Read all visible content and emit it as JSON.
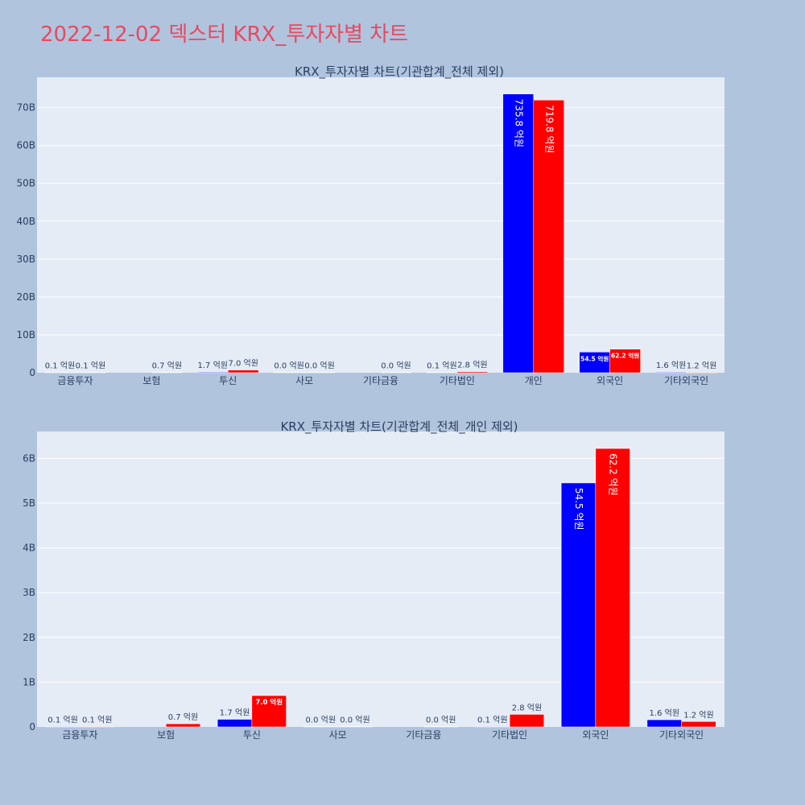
{
  "page": {
    "title": "2022-12-02 덱스터 KRX_투자자별 차트"
  },
  "colors": {
    "background": "#b0c4de",
    "plot_background": "#e5ecf6",
    "title": "#e8495f",
    "text": "#2a3f5f",
    "series_a": "#0000ff",
    "series_b": "#ff0000"
  },
  "chart_data": [
    {
      "type": "bar",
      "title": "KRX_투자자별 차트(기관합계_전체 제외)",
      "categories": [
        "금융투자",
        "보험",
        "투신",
        "사모",
        "기타금융",
        "기타법인",
        "개인",
        "외국인",
        "기타외국인"
      ],
      "series": [
        {
          "color": "#0000ff",
          "values": [
            0.01,
            null,
            0.17,
            0.0,
            null,
            0.01,
            73.58,
            5.45,
            0.16
          ],
          "labels": [
            "0.1 억원",
            "",
            "1.7 억원",
            "0.0 억원",
            "",
            "0.1 억원",
            "735.8 억원",
            "54.5 억원",
            "1.6 억원"
          ]
        },
        {
          "color": "#ff0000",
          "values": [
            0.01,
            0.07,
            0.7,
            0.0,
            0.0,
            0.28,
            71.98,
            6.22,
            0.12
          ],
          "labels": [
            "0.1 억원",
            "0.7 억원",
            "7.0 억원",
            "0.0 억원",
            "0.0 억원",
            "2.8 억원",
            "719.8 억원",
            "62.2 억원",
            "1.2 억원"
          ]
        }
      ],
      "ylim": [
        0,
        78
      ],
      "yticks": [
        0,
        10,
        20,
        30,
        40,
        50,
        60,
        70
      ],
      "ytick_labels": [
        "0",
        "10B",
        "20B",
        "30B",
        "40B",
        "50B",
        "60B",
        "70B"
      ],
      "grid": true
    },
    {
      "type": "bar",
      "title": "KRX_투자자별 차트(기관합계_전체_개인 제외)",
      "categories": [
        "금융투자",
        "보험",
        "투신",
        "사모",
        "기타금융",
        "기타법인",
        "외국인",
        "기타외국인"
      ],
      "series": [
        {
          "color": "#0000ff",
          "values": [
            0.01,
            null,
            0.17,
            0.0,
            null,
            0.01,
            5.45,
            0.16
          ],
          "labels": [
            "0.1 억원",
            "",
            "1.7 억원",
            "0.0 억원",
            "",
            "0.1 억원",
            "54.5 억원",
            "1.6 억원"
          ]
        },
        {
          "color": "#ff0000",
          "values": [
            0.01,
            0.07,
            0.7,
            0.0,
            0.0,
            0.28,
            6.22,
            0.12
          ],
          "labels": [
            "0.1 억원",
            "0.7 억원",
            "7.0 억원",
            "0.0 억원",
            "0.0 억원",
            "2.8 억원",
            "62.2 억원",
            "1.2 억원"
          ]
        }
      ],
      "ylim": [
        0,
        6.6
      ],
      "yticks": [
        0,
        1,
        2,
        3,
        4,
        5,
        6
      ],
      "ytick_labels": [
        "0",
        "1B",
        "2B",
        "3B",
        "4B",
        "5B",
        "6B"
      ],
      "grid": true
    }
  ]
}
